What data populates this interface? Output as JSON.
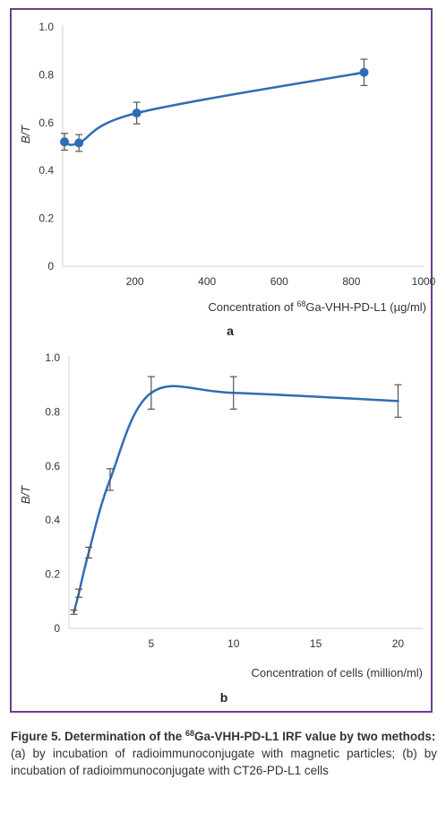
{
  "chart_data": [
    {
      "type": "line",
      "panel_label": "a",
      "xlabel_pre": "Concentration of ",
      "xlabel_sup": "68",
      "xlabel_post": "Ga-VHH-PD-L1 (µg/ml)",
      "ylabel": "B/T",
      "xlim": [
        0,
        1000
      ],
      "ylim": [
        0,
        1.0
      ],
      "x_ticks": [
        "200",
        "400",
        "600",
        "800",
        "1000"
      ],
      "y_ticks": [
        "0",
        "0.2",
        "0.4",
        "0.6",
        "0.8",
        "1.0"
      ],
      "series": [
        {
          "x": [
            5,
            45,
            205,
            835
          ],
          "y": [
            0.52,
            0.515,
            0.64,
            0.81
          ],
          "error": [
            0.035,
            0.035,
            0.045,
            0.055
          ]
        }
      ],
      "markers": true,
      "grid": false,
      "line_color": "#2e6db4"
    },
    {
      "type": "line",
      "panel_label": "b",
      "xlabel": "Concentration of cells (million/ml)",
      "ylabel": "B/T",
      "xlim": [
        0,
        21.5
      ],
      "ylim": [
        0,
        1.0
      ],
      "x_ticks": [
        "5",
        "10",
        "15",
        "20"
      ],
      "y_ticks": [
        "0",
        "0.2",
        "0.4",
        "0.6",
        "0.8",
        "1.0"
      ],
      "series": [
        {
          "x": [
            0.3,
            0.6,
            1.2,
            2.5,
            5,
            10,
            20
          ],
          "y": [
            0.06,
            0.13,
            0.28,
            0.55,
            0.87,
            0.87,
            0.84
          ],
          "error": [
            0.008,
            0.015,
            0.02,
            0.04,
            0.06,
            0.06,
            0.06
          ]
        }
      ],
      "markers": false,
      "grid": false,
      "line_color": "#2e6db4"
    }
  ],
  "caption": {
    "title_pre": "Figure 5. Determination of the ",
    "title_sup": "68",
    "title_post": "Ga-VHH-PD-L1 IRF value by two methods:",
    "body": "(a) by incubation of radioimmunoconjugate with magnetic particles; (b) by incubation of radioimmunoconjugate with CT26-PD-L1 cells"
  }
}
